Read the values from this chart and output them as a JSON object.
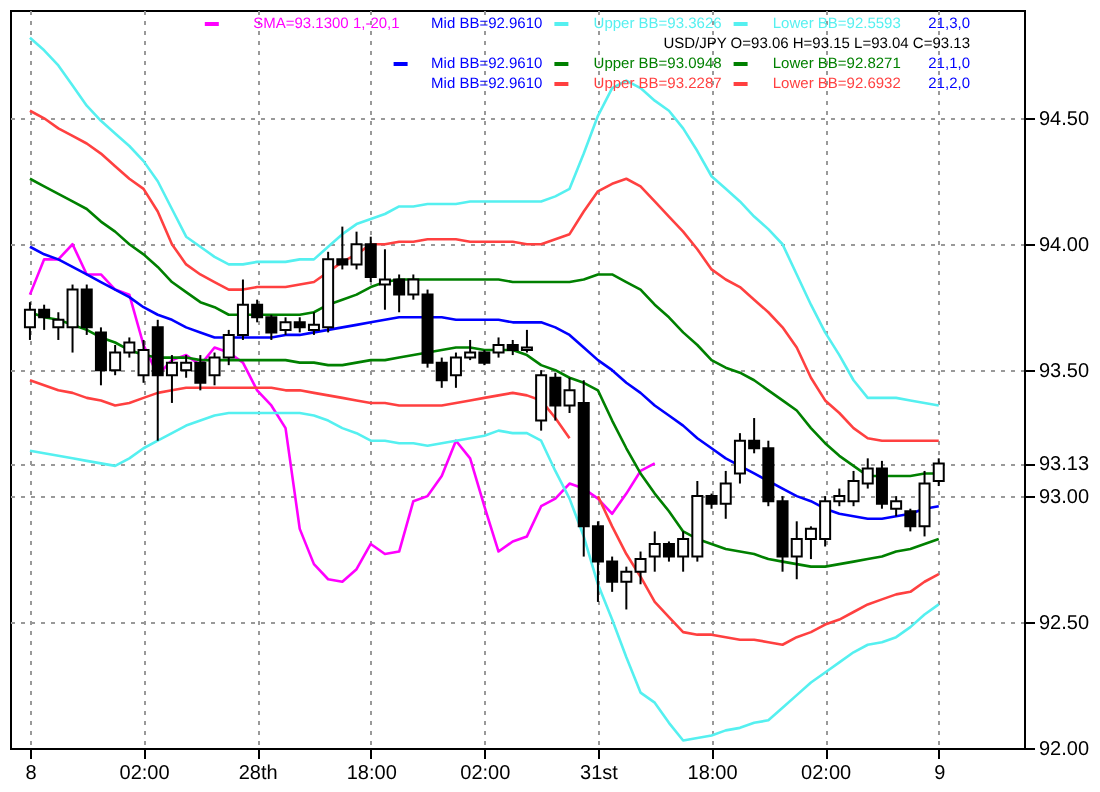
{
  "chart_data": {
    "type": "candlestick",
    "categories": [
      "8",
      null,
      null,
      null,
      null,
      null,
      null,
      null,
      "02:00",
      null,
      null,
      null,
      null,
      null,
      null,
      null,
      "28th",
      null,
      null,
      null,
      null,
      null,
      null,
      null,
      "18:00",
      null,
      null,
      null,
      null,
      null,
      null,
      null,
      "02:00",
      null,
      null,
      null,
      null,
      null,
      null,
      null,
      "31st",
      null,
      null,
      null,
      null,
      null,
      null,
      null,
      "18:00",
      null,
      null,
      null,
      null,
      null,
      null,
      null,
      "02:00",
      null,
      null,
      null,
      null,
      null,
      null,
      null,
      "9"
    ],
    "ylim": [
      92.0,
      94.93
    ],
    "yticks": [
      {
        "value": 92.0,
        "label": "92.00"
      },
      {
        "value": 92.5,
        "label": "92.50"
      },
      {
        "value": 93.0,
        "label": "93.00"
      },
      {
        "value": 93.13,
        "label": "93.13"
      },
      {
        "value": 93.5,
        "label": "93.50"
      },
      {
        "value": 94.0,
        "label": "94.00"
      },
      {
        "value": 94.5,
        "label": "94.50"
      }
    ],
    "grid": true,
    "legend": "top right",
    "annotations": [
      "Mid BB=92.9610",
      "21,3,0",
      "USD/JPY O=93.06 H=93.15 L=93.04 C=93.13",
      "21,1,0",
      "Mid BB=92.9610",
      "21,2,0"
    ],
    "series": [
      {
        "color": "#000000",
        "ohlc": [
          [
            93.67,
            93.77,
            93.62,
            93.74
          ],
          [
            93.74,
            93.76,
            93.66,
            93.71
          ],
          [
            93.67,
            93.73,
            93.62,
            93.7
          ],
          [
            93.67,
            93.84,
            93.57,
            93.82
          ],
          [
            93.82,
            93.84,
            93.64,
            93.67
          ],
          [
            93.65,
            93.67,
            93.44,
            93.5
          ],
          [
            93.5,
            93.6,
            93.48,
            93.57
          ],
          [
            93.57,
            93.63,
            93.55,
            93.61
          ],
          [
            93.48,
            93.62,
            93.45,
            93.58
          ],
          [
            93.67,
            93.7,
            93.22,
            93.48
          ],
          [
            93.48,
            93.56,
            93.37,
            93.53
          ],
          [
            93.5,
            93.56,
            93.47,
            93.53
          ],
          [
            93.53,
            93.56,
            93.42,
            93.45
          ],
          [
            93.48,
            93.57,
            93.44,
            93.55
          ],
          [
            93.55,
            93.66,
            93.52,
            93.64
          ],
          [
            93.64,
            93.86,
            93.62,
            93.76
          ],
          [
            93.76,
            93.78,
            93.69,
            93.71
          ],
          [
            93.71,
            93.72,
            93.62,
            93.65
          ],
          [
            93.66,
            93.71,
            93.64,
            93.69
          ],
          [
            93.69,
            93.71,
            93.65,
            93.67
          ],
          [
            93.66,
            93.73,
            93.64,
            93.68
          ],
          [
            93.67,
            93.97,
            93.65,
            93.94
          ],
          [
            93.94,
            94.07,
            93.9,
            93.92
          ],
          [
            93.92,
            94.05,
            93.9,
            94.0
          ],
          [
            94.0,
            94.03,
            93.85,
            93.87
          ],
          [
            93.84,
            93.98,
            93.74,
            93.86
          ],
          [
            93.86,
            93.88,
            93.73,
            93.8
          ],
          [
            93.8,
            93.88,
            93.78,
            93.86
          ],
          [
            93.8,
            93.82,
            93.51,
            93.53
          ],
          [
            93.53,
            93.55,
            93.43,
            93.46
          ],
          [
            93.48,
            93.57,
            93.43,
            93.55
          ],
          [
            93.55,
            93.62,
            93.54,
            93.57
          ],
          [
            93.57,
            93.58,
            93.52,
            93.53
          ],
          [
            93.57,
            93.63,
            93.55,
            93.6
          ],
          [
            93.6,
            93.62,
            93.56,
            93.58
          ],
          [
            93.58,
            93.66,
            93.57,
            93.59
          ],
          [
            93.3,
            93.5,
            93.26,
            93.48
          ],
          [
            93.47,
            93.49,
            93.3,
            93.36
          ],
          [
            93.36,
            93.47,
            93.33,
            93.42
          ],
          [
            93.37,
            93.46,
            92.76,
            92.88
          ],
          [
            92.88,
            92.9,
            92.58,
            92.74
          ],
          [
            92.74,
            92.76,
            92.62,
            92.66
          ],
          [
            92.66,
            92.72,
            92.55,
            92.7
          ],
          [
            92.7,
            92.78,
            92.65,
            92.75
          ],
          [
            92.76,
            92.86,
            92.7,
            92.81
          ],
          [
            92.81,
            92.82,
            92.74,
            92.76
          ],
          [
            92.76,
            92.86,
            92.7,
            92.83
          ],
          [
            92.76,
            93.06,
            92.74,
            93.0
          ],
          [
            93.0,
            93.01,
            92.95,
            92.97
          ],
          [
            92.97,
            93.1,
            92.91,
            93.05
          ],
          [
            93.09,
            93.25,
            93.05,
            93.22
          ],
          [
            93.22,
            93.31,
            93.17,
            93.19
          ],
          [
            93.19,
            93.22,
            92.96,
            92.98
          ],
          [
            92.98,
            93.0,
            92.7,
            92.76
          ],
          [
            92.76,
            92.9,
            92.67,
            92.83
          ],
          [
            92.83,
            92.88,
            92.75,
            92.87
          ],
          [
            92.83,
            93.0,
            92.8,
            92.98
          ],
          [
            92.98,
            93.03,
            92.96,
            93.0
          ],
          [
            92.98,
            93.1,
            92.96,
            93.06
          ],
          [
            93.05,
            93.15,
            93.03,
            93.11
          ],
          [
            93.11,
            93.14,
            92.95,
            92.97
          ],
          [
            92.95,
            93.0,
            92.92,
            92.98
          ],
          [
            92.94,
            92.95,
            92.86,
            92.88
          ],
          [
            92.88,
            93.1,
            92.84,
            93.05
          ],
          [
            93.06,
            93.15,
            93.04,
            93.13
          ]
        ]
      },
      {
        "type": "line",
        "name": "SMA=93.1300 1,-20,1",
        "color": "#ff00ff",
        "values": [
          93.8,
          93.94,
          93.94,
          94.0,
          93.88,
          93.88,
          93.82,
          93.8,
          93.6,
          93.48,
          93.54,
          93.56,
          93.52,
          93.59,
          93.57,
          93.53,
          93.42,
          93.36,
          93.27,
          92.87,
          92.73,
          92.67,
          92.66,
          92.71,
          92.81,
          92.77,
          92.78,
          92.98,
          93.0,
          93.08,
          93.22,
          93.15,
          92.96,
          92.78,
          92.82,
          92.84,
          92.96,
          92.99,
          93.05,
          93.03,
          92.99,
          92.93,
          93.01,
          93.1,
          93.13,
          null,
          null,
          null,
          null,
          null,
          null,
          null,
          null,
          null,
          null,
          null,
          null,
          null,
          null,
          null,
          null,
          null,
          null,
          null,
          null
        ]
      },
      {
        "type": "line",
        "name": "Mid BB=92.9610",
        "color": "#0000ff",
        "values": [
          93.99,
          93.96,
          93.94,
          93.91,
          93.88,
          93.85,
          93.82,
          93.79,
          93.75,
          93.72,
          93.7,
          93.67,
          93.65,
          93.63,
          93.63,
          93.63,
          93.63,
          93.63,
          93.64,
          93.64,
          93.65,
          93.66,
          93.67,
          93.68,
          93.69,
          93.7,
          93.71,
          93.71,
          93.71,
          93.71,
          93.7,
          93.7,
          93.7,
          93.7,
          93.69,
          93.69,
          93.69,
          93.67,
          93.64,
          93.59,
          93.54,
          93.5,
          93.45,
          93.41,
          93.36,
          93.32,
          93.28,
          93.23,
          93.19,
          93.15,
          93.12,
          93.09,
          93.06,
          93.03,
          93.0,
          92.98,
          92.95,
          92.93,
          92.92,
          92.91,
          92.91,
          92.92,
          92.93,
          92.95,
          92.96
        ]
      },
      {
        "type": "line",
        "name": "Upper BB=93.0948",
        "color": "#008000",
        "values": [
          94.26,
          94.23,
          94.2,
          94.17,
          94.14,
          94.09,
          94.05,
          94.0,
          93.96,
          93.91,
          93.85,
          93.81,
          93.77,
          93.75,
          93.72,
          93.72,
          93.72,
          93.72,
          93.72,
          93.72,
          93.73,
          93.76,
          93.78,
          93.8,
          93.83,
          93.85,
          93.86,
          93.86,
          93.86,
          93.86,
          93.86,
          93.86,
          93.86,
          93.86,
          93.85,
          93.85,
          93.85,
          93.85,
          93.85,
          93.86,
          93.88,
          93.88,
          93.85,
          93.82,
          93.76,
          93.71,
          93.65,
          93.6,
          93.54,
          93.51,
          93.49,
          93.46,
          93.42,
          93.38,
          93.34,
          93.27,
          93.21,
          93.16,
          93.12,
          93.08,
          93.08,
          93.08,
          93.08,
          93.09,
          93.09
        ]
      },
      {
        "type": "line",
        "name": "Lower BB=92.8271",
        "color": "#008000",
        "values": [
          93.73,
          93.71,
          93.7,
          93.68,
          93.66,
          93.63,
          93.61,
          93.58,
          93.56,
          93.55,
          93.55,
          93.55,
          93.54,
          93.54,
          93.54,
          93.54,
          93.54,
          93.54,
          93.54,
          93.53,
          93.53,
          93.52,
          93.52,
          93.53,
          93.54,
          93.54,
          93.55,
          93.56,
          93.57,
          93.58,
          93.59,
          93.59,
          93.58,
          93.58,
          93.58,
          93.56,
          93.52,
          93.5,
          93.47,
          93.45,
          93.42,
          93.3,
          93.19,
          93.09,
          93.01,
          92.94,
          92.86,
          92.83,
          92.81,
          92.79,
          92.78,
          92.77,
          92.75,
          92.74,
          92.73,
          92.72,
          92.72,
          92.73,
          92.74,
          92.75,
          92.76,
          92.78,
          92.79,
          92.81,
          92.83
        ]
      },
      {
        "type": "line",
        "name": "Upper BB=93.2287",
        "color": "#ff4040",
        "values": [
          94.53,
          94.5,
          94.46,
          94.43,
          94.4,
          94.36,
          94.31,
          94.26,
          94.22,
          94.13,
          94.0,
          93.92,
          93.88,
          93.85,
          93.82,
          93.82,
          93.83,
          93.83,
          93.83,
          93.84,
          93.85,
          93.89,
          93.93,
          93.96,
          94.0,
          94.0,
          94.01,
          94.01,
          94.02,
          94.02,
          94.02,
          94.01,
          94.01,
          94.01,
          94.01,
          94.0,
          94.0,
          94.02,
          94.04,
          94.13,
          94.21,
          94.24,
          94.26,
          94.23,
          94.17,
          94.11,
          94.05,
          93.98,
          93.9,
          93.86,
          93.83,
          93.78,
          93.73,
          93.67,
          93.59,
          93.47,
          93.38,
          93.33,
          93.27,
          93.23,
          93.22,
          93.22,
          93.22,
          93.22,
          93.22
        ]
      },
      {
        "type": "line",
        "name": "Lower BB=92.6932",
        "color": "#ff4040",
        "values": [
          93.46,
          93.44,
          93.42,
          93.41,
          93.39,
          93.38,
          93.36,
          93.37,
          93.39,
          93.41,
          93.42,
          93.43,
          93.43,
          93.43,
          93.43,
          93.43,
          93.43,
          93.43,
          93.42,
          93.42,
          93.41,
          93.4,
          93.39,
          93.38,
          93.37,
          93.37,
          93.36,
          93.36,
          93.36,
          93.36,
          93.37,
          93.38,
          93.39,
          93.4,
          93.41,
          93.4,
          93.38,
          93.31,
          93.23,
          null,
          93.0,
          92.88,
          92.77,
          92.68,
          92.58,
          92.52,
          92.46,
          92.45,
          92.45,
          92.44,
          92.43,
          92.43,
          92.42,
          92.41,
          92.44,
          92.46,
          92.49,
          92.51,
          92.54,
          92.57,
          92.59,
          92.61,
          92.62,
          92.66,
          92.69
        ]
      },
      {
        "type": "line",
        "name": "Upper BB=93.3626",
        "color": "#55f0f0",
        "values": [
          94.82,
          94.77,
          94.71,
          94.63,
          94.55,
          94.49,
          94.44,
          94.39,
          94.33,
          94.25,
          94.14,
          94.03,
          93.99,
          93.95,
          93.92,
          93.92,
          93.93,
          93.93,
          93.93,
          93.94,
          93.94,
          93.99,
          94.04,
          94.08,
          94.1,
          94.12,
          94.15,
          94.15,
          94.16,
          94.16,
          94.16,
          94.17,
          94.17,
          94.17,
          94.17,
          94.17,
          94.17,
          94.19,
          94.22,
          94.36,
          94.51,
          94.62,
          94.65,
          94.62,
          94.57,
          94.53,
          94.46,
          94.37,
          94.27,
          94.22,
          94.17,
          94.11,
          94.06,
          94.0,
          93.88,
          93.76,
          93.65,
          93.56,
          93.46,
          93.39,
          93.39,
          93.39,
          93.38,
          93.37,
          93.36
        ]
      },
      {
        "type": "line",
        "name": "Lower BB=92.5593",
        "color": "#55f0f0",
        "values": [
          93.18,
          93.17,
          93.16,
          93.15,
          93.14,
          93.13,
          93.12,
          93.15,
          93.19,
          93.22,
          93.25,
          93.28,
          93.3,
          93.32,
          93.33,
          93.33,
          93.33,
          93.33,
          93.33,
          93.33,
          93.32,
          93.3,
          93.27,
          93.25,
          93.22,
          93.22,
          93.21,
          93.21,
          93.2,
          93.21,
          93.22,
          93.23,
          93.24,
          93.26,
          93.25,
          93.25,
          93.22,
          93.1,
          92.99,
          92.84,
          92.65,
          92.51,
          92.36,
          92.22,
          92.18,
          92.1,
          92.03,
          92.04,
          92.05,
          92.07,
          92.08,
          92.1,
          92.11,
          92.16,
          92.21,
          92.26,
          92.3,
          92.34,
          92.38,
          92.41,
          92.42,
          92.44,
          92.48,
          92.53,
          92.57
        ]
      }
    ]
  }
}
